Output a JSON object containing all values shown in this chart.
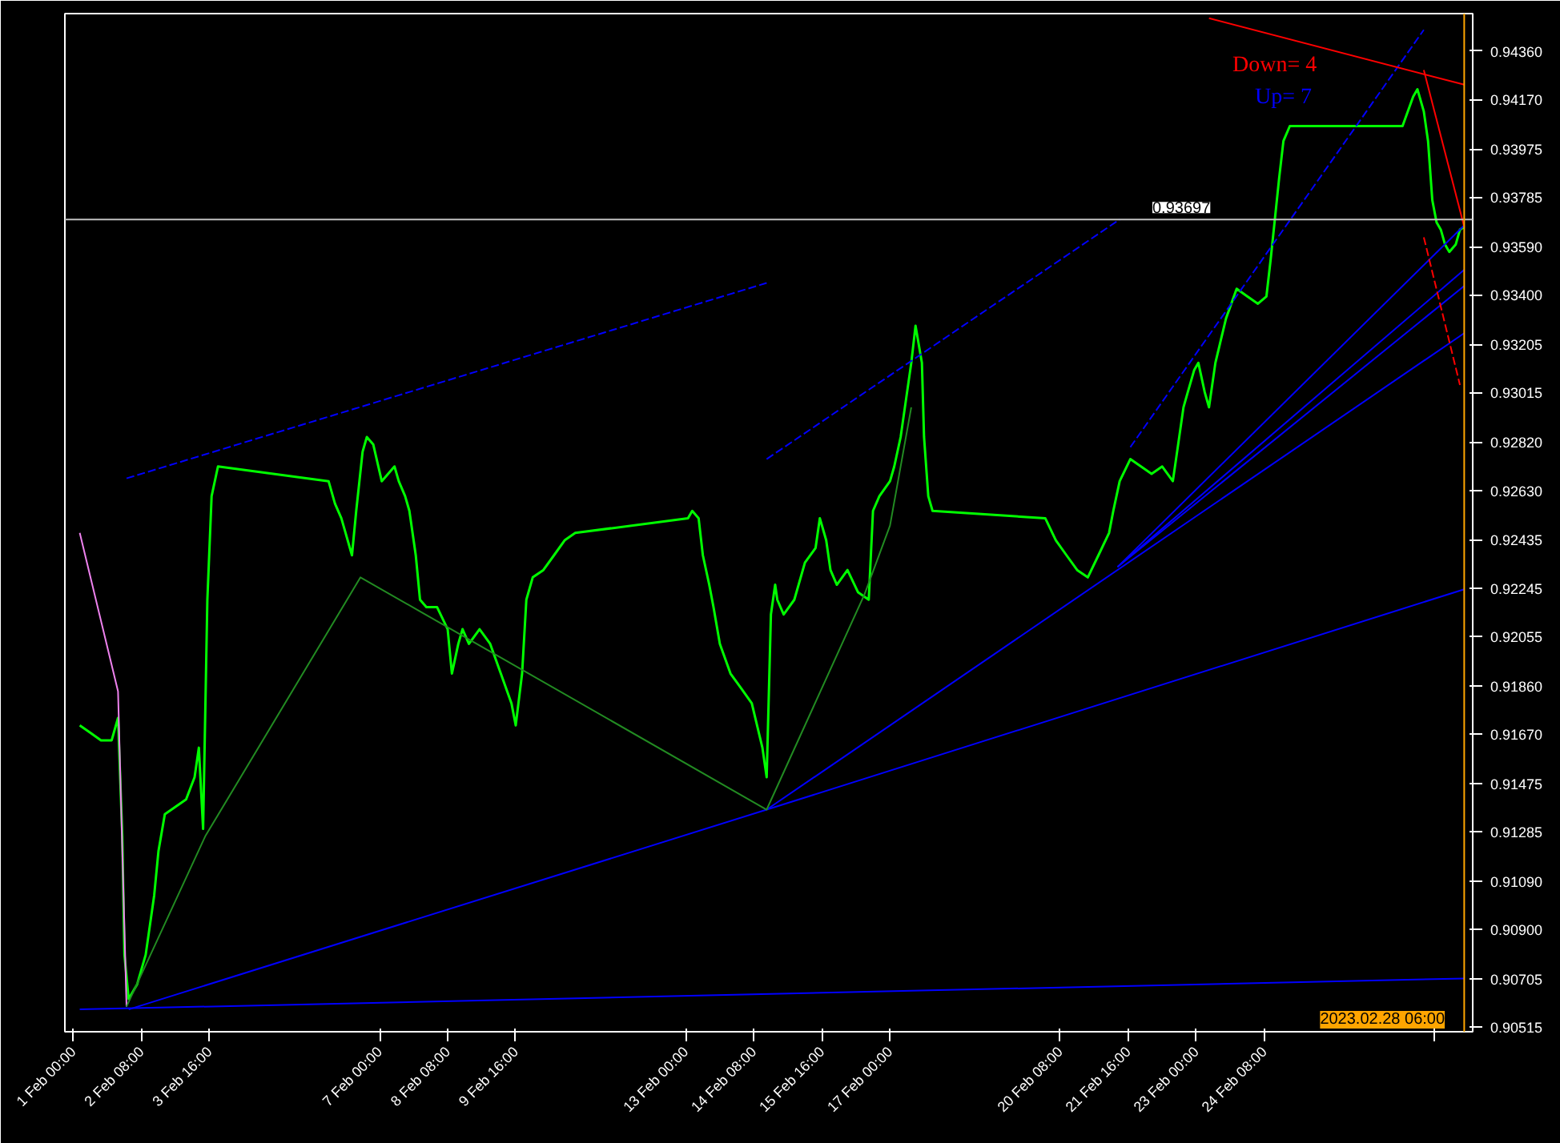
{
  "chart_data": {
    "type": "line",
    "xlim": [
      "2023-01-31T20:00",
      "2023-02-28T10:00"
    ],
    "ylim": [
      0.90497,
      0.94508
    ],
    "xticks": [
      {
        "value": "2023-02-01T00:00",
        "label": "1 Feb 00:00"
      },
      {
        "value": "2023-02-02T08:00",
        "label": "2 Feb 08:00"
      },
      {
        "value": "2023-02-03T16:00",
        "label": "3 Feb 16:00"
      },
      {
        "value": "2023-02-07T00:00",
        "label": "7 Feb 00:00"
      },
      {
        "value": "2023-02-08T08:00",
        "label": "8 Feb 08:00"
      },
      {
        "value": "2023-02-09T16:00",
        "label": "9 Feb 16:00"
      },
      {
        "value": "2023-02-13T00:00",
        "label": "13 Feb 00:00"
      },
      {
        "value": "2023-02-14T08:00",
        "label": "14 Feb 08:00"
      },
      {
        "value": "2023-02-15T16:00",
        "label": "15 Feb 16:00"
      },
      {
        "value": "2023-02-17T00:00",
        "label": "17 Feb 00:00"
      },
      {
        "value": "2023-02-20T08:00",
        "label": "20 Feb 08:00"
      },
      {
        "value": "2023-02-21T16:00",
        "label": "21 Feb 16:00"
      },
      {
        "value": "2023-02-23T00:00",
        "label": "23 Feb 00:00"
      },
      {
        "value": "2023-02-24T08:00",
        "label": "24 Feb 08:00"
      },
      {
        "value": "2023-02-27T16:00",
        "label": null
      }
    ],
    "yticks": [
      {
        "value": 0.9436,
        "label": "0.94360"
      },
      {
        "value": 0.9417,
        "label": "0.94170"
      },
      {
        "value": 0.93975,
        "label": "0.93975"
      },
      {
        "value": 0.93785,
        "label": "0.93785"
      },
      {
        "value": 0.9359,
        "label": "0.93590"
      },
      {
        "value": 0.934,
        "label": "0.93400"
      },
      {
        "value": 0.93205,
        "label": "0.93205"
      },
      {
        "value": 0.93015,
        "label": "0.93015"
      },
      {
        "value": 0.9282,
        "label": "0.92820"
      },
      {
        "value": 0.9263,
        "label": "0.92630"
      },
      {
        "value": 0.92435,
        "label": "0.92435"
      },
      {
        "value": 0.92245,
        "label": "0.92245"
      },
      {
        "value": 0.92055,
        "label": "0.92055"
      },
      {
        "value": 0.9186,
        "label": "0.91860"
      },
      {
        "value": 0.9167,
        "label": "0.91670"
      },
      {
        "value": 0.91475,
        "label": "0.91475"
      },
      {
        "value": 0.91285,
        "label": "0.91285"
      },
      {
        "value": 0.9109,
        "label": "0.91090"
      },
      {
        "value": 0.909,
        "label": "0.90900"
      },
      {
        "value": 0.90705,
        "label": "0.90705"
      },
      {
        "value": 0.90515,
        "label": "0.90515"
      }
    ],
    "grid": false,
    "series": [
      {
        "color": "#00ff00",
        "x": [
          "2023-02-01T03:00",
          "2023-02-01T08:00",
          "2023-02-01T13:00",
          "2023-02-01T18:00",
          "2023-02-01T21:00",
          "2023-02-01T23:00",
          "2023-02-02T00:00",
          "2023-02-02T02:00",
          "2023-02-02T06:00",
          "2023-02-02T10:00",
          "2023-02-02T14:00",
          "2023-02-02T16:00",
          "2023-02-02T19:00",
          "2023-02-03T00:00",
          "2023-02-03T05:00",
          "2023-02-03T09:00",
          "2023-02-03T11:00",
          "2023-02-03T13:00",
          "2023-02-03T15:00",
          "2023-02-03T17:00",
          "2023-02-03T20:00",
          "2023-02-06T00:00",
          "2023-02-06T03:00",
          "2023-02-06T06:00",
          "2023-02-06T08:00",
          "2023-02-06T11:00",
          "2023-02-06T13:00",
          "2023-02-06T16:00",
          "2023-02-06T18:00",
          "2023-02-06T21:00",
          "2023-02-07T01:00",
          "2023-02-07T04:00",
          "2023-02-07T07:00",
          "2023-02-07T09:00",
          "2023-02-07T12:00",
          "2023-02-07T14:00",
          "2023-02-07T17:00",
          "2023-02-07T19:00",
          "2023-02-07T22:00",
          "2023-02-08T03:00",
          "2023-02-08T08:00",
          "2023-02-08T10:00",
          "2023-02-08T13:00",
          "2023-02-08T15:00",
          "2023-02-08T18:00",
          "2023-02-08T23:00",
          "2023-02-09T04:00",
          "2023-02-09T09:00",
          "2023-02-09T14:00",
          "2023-02-09T16:00",
          "2023-02-09T19:00",
          "2023-02-09T21:00",
          "2023-02-10T00:00",
          "2023-02-10T05:00",
          "2023-02-10T10:00",
          "2023-02-10T15:00",
          "2023-02-10T20:00",
          "2023-02-13T01:00",
          "2023-02-13T03:00",
          "2023-02-13T06:00",
          "2023-02-13T08:00",
          "2023-02-13T11:00",
          "2023-02-13T13:00",
          "2023-02-13T16:00",
          "2023-02-13T21:00",
          "2023-02-14T02:00",
          "2023-02-14T07:00",
          "2023-02-14T12:00",
          "2023-02-14T14:00",
          "2023-02-14T16:00",
          "2023-02-14T18:00",
          "2023-02-14T19:00",
          "2023-02-14T22:00",
          "2023-02-15T03:00",
          "2023-02-15T08:00",
          "2023-02-15T13:00",
          "2023-02-15T15:00",
          "2023-02-15T18:00",
          "2023-02-15T20:00",
          "2023-02-15T23:00",
          "2023-02-16T04:00",
          "2023-02-16T09:00",
          "2023-02-16T14:00",
          "2023-02-16T16:00",
          "2023-02-16T19:00",
          "2023-02-17T00:00",
          "2023-02-17T02:00",
          "2023-02-17T05:00",
          "2023-02-17T07:00",
          "2023-02-17T10:00",
          "2023-02-17T12:00",
          "2023-02-17T15:00",
          "2023-02-17T16:00",
          "2023-02-17T18:00",
          "2023-02-17T20:00",
          "2023-02-20T01:00",
          "2023-02-20T06:00",
          "2023-02-20T11:00",
          "2023-02-20T16:00",
          "2023-02-20T21:00",
          "2023-02-21T02:00",
          "2023-02-21T07:00",
          "2023-02-21T09:00",
          "2023-02-21T12:00",
          "2023-02-21T17:00",
          "2023-02-21T22:00",
          "2023-02-22T03:00",
          "2023-02-22T08:00",
          "2023-02-22T13:00",
          "2023-02-22T15:00",
          "2023-02-22T18:00",
          "2023-02-22T20:00",
          "2023-02-22T23:00",
          "2023-02-23T01:00",
          "2023-02-23T04:00",
          "2023-02-23T06:00",
          "2023-02-23T09:00",
          "2023-02-23T14:00",
          "2023-02-23T19:00",
          "2023-02-24T00:00",
          "2023-02-24T05:00",
          "2023-02-24T09:00",
          "2023-02-24T11:00",
          "2023-02-24T15:00",
          "2023-02-24T17:00",
          "2023-02-24T20:00",
          "2023-02-27T01:00",
          "2023-02-27T06:00",
          "2023-02-27T08:00",
          "2023-02-27T11:00",
          "2023-02-27T13:00",
          "2023-02-27T15:00",
          "2023-02-27T17:00",
          "2023-02-27T19:00",
          "2023-02-27T21:00",
          "2023-02-27T23:00",
          "2023-02-28T02:00",
          "2023-02-28T04:00",
          "2023-02-28T06:00"
        ],
        "values": [
          0.91704,
          0.91675,
          0.91645,
          0.91645,
          0.91733,
          0.91267,
          0.908,
          0.90626,
          0.90684,
          0.908,
          0.91034,
          0.91208,
          0.91354,
          0.91383,
          0.91412,
          0.915,
          0.91616,
          0.91296,
          0.92199,
          0.92607,
          0.92724,
          0.92666,
          0.92578,
          0.9252,
          0.92462,
          0.92374,
          0.92549,
          0.92782,
          0.9284,
          0.92811,
          0.92666,
          0.92695,
          0.92724,
          0.92666,
          0.92607,
          0.92549,
          0.92374,
          0.92199,
          0.9217,
          0.9217,
          0.92083,
          0.91908,
          0.92025,
          0.92083,
          0.92025,
          0.92083,
          0.92025,
          0.91908,
          0.91791,
          0.91704,
          0.91908,
          0.92199,
          0.92287,
          0.92316,
          0.92374,
          0.92433,
          0.92462,
          0.9252,
          0.92549,
          0.9252,
          0.92374,
          0.92258,
          0.9217,
          0.92025,
          0.91908,
          0.9185,
          0.91791,
          0.91616,
          0.915,
          0.92141,
          0.92258,
          0.92199,
          0.92141,
          0.92199,
          0.92345,
          0.92403,
          0.9252,
          0.92433,
          0.92316,
          0.92258,
          0.92316,
          0.92228,
          0.92199,
          0.92549,
          0.92607,
          0.92666,
          0.92724,
          0.9284,
          0.92957,
          0.93132,
          0.93278,
          0.93132,
          0.9284,
          0.92607,
          0.92549,
          0.9252,
          0.92433,
          0.92374,
          0.92316,
          0.92287,
          0.92374,
          0.92462,
          0.92549,
          0.92666,
          0.92753,
          0.92724,
          0.92695,
          0.92724,
          0.92666,
          0.92782,
          0.92957,
          0.93016,
          0.93103,
          0.93132,
          0.93016,
          0.92957,
          0.93132,
          0.93307,
          0.93424,
          0.93394,
          0.93365,
          0.93394,
          0.9354,
          0.93861,
          0.94006,
          0.94065,
          0.94065,
          0.94181,
          0.9421,
          0.94123,
          0.94006,
          0.93773,
          0.93686,
          0.93657,
          0.93598,
          0.93569,
          0.93598,
          0.93657,
          0.93668
        ]
      },
      {
        "color": "#0000ff",
        "x": [
          "2023-02-01T03:00",
          "2023-02-28T06:00"
        ],
        "values": [
          0.90585,
          0.90707
        ]
      },
      {
        "color": "#0000ff",
        "x": [
          "2023-02-02T02:00",
          "2023-02-14T14:00",
          "2023-02-28T06:00"
        ],
        "values": [
          0.90585,
          0.91372,
          0.9224
        ]
      },
      {
        "color": "#0000ff",
        "x": [
          "2023-02-14T14:00",
          "2023-02-28T06:00"
        ],
        "values": [
          0.91372,
          0.93249
        ]
      },
      {
        "color": "#0000ff",
        "x": [
          "2023-02-21T11:00",
          "2023-02-28T06:00"
        ],
        "values": [
          0.92328,
          0.93674
        ]
      },
      {
        "color": "#0000ff",
        "x": [
          "2023-02-21T11:00",
          "2023-02-28T06:00"
        ],
        "values": [
          0.92328,
          0.93499
        ]
      },
      {
        "color": "#0000ff",
        "x": [
          "2023-02-21T11:00",
          "2023-02-28T06:00"
        ],
        "values": [
          0.92328,
          0.93435
        ]
      },
      {
        "color": "#0000ff",
        "line_style": "dashed",
        "x": [
          "2023-02-02T01:00",
          "2023-02-14T14:00"
        ],
        "values": [
          0.92677,
          0.93447
        ]
      },
      {
        "color": "#0000ff",
        "line_style": "dashed",
        "x": [
          "2023-02-14T14:00",
          "2023-02-21T12:00"
        ],
        "values": [
          0.92753,
          0.93697
        ]
      },
      {
        "color": "#0000ff",
        "line_style": "dashed",
        "x": [
          "2023-02-21T17:00",
          "2023-02-27T11:00"
        ],
        "values": [
          0.928,
          0.94444
        ]
      },
      {
        "color": "#ff0000",
        "x": [
          "2023-02-23T06:00",
          "2023-02-28T06:00"
        ],
        "values": [
          0.9449,
          0.94228
        ]
      },
      {
        "color": "#ff0000",
        "x": [
          "2023-02-27T11:00",
          "2023-02-28T06:00"
        ],
        "values": [
          0.94286,
          0.93668
        ]
      },
      {
        "color": "#ff0000",
        "line_style": "dashed",
        "x": [
          "2023-02-27T11:00",
          "2023-02-28T04:00"
        ],
        "values": [
          0.93627,
          0.93045
        ]
      },
      {
        "color": "#ee82ee",
        "x": [
          "2023-02-01T03:00",
          "2023-02-01T21:00",
          "2023-02-02T01:00"
        ],
        "values": [
          0.92462,
          0.91838,
          0.90596
        ]
      },
      {
        "color": "#228b22",
        "x": [
          "2023-02-02T01:00",
          "2023-02-03T14:00",
          "2023-02-06T15:00",
          "2023-02-14T14:00",
          "2023-02-16T12:00",
          "2023-02-17T00:00",
          "2023-02-17T10:00"
        ],
        "values": [
          0.90596,
          0.91267,
          0.92287,
          0.91372,
          0.9222,
          0.92491,
          0.92957
        ]
      }
    ],
    "ref_lines": [
      {
        "axis": "y",
        "value": 0.93697,
        "label": "0.93697",
        "color": "#c0c0c0"
      },
      {
        "axis": "x",
        "value": "2023-02-28T06:00",
        "label": "2023.02.28 06:00",
        "color": "#ffa500"
      }
    ],
    "annotations": [
      "Down= 4",
      "Up= 7"
    ]
  }
}
